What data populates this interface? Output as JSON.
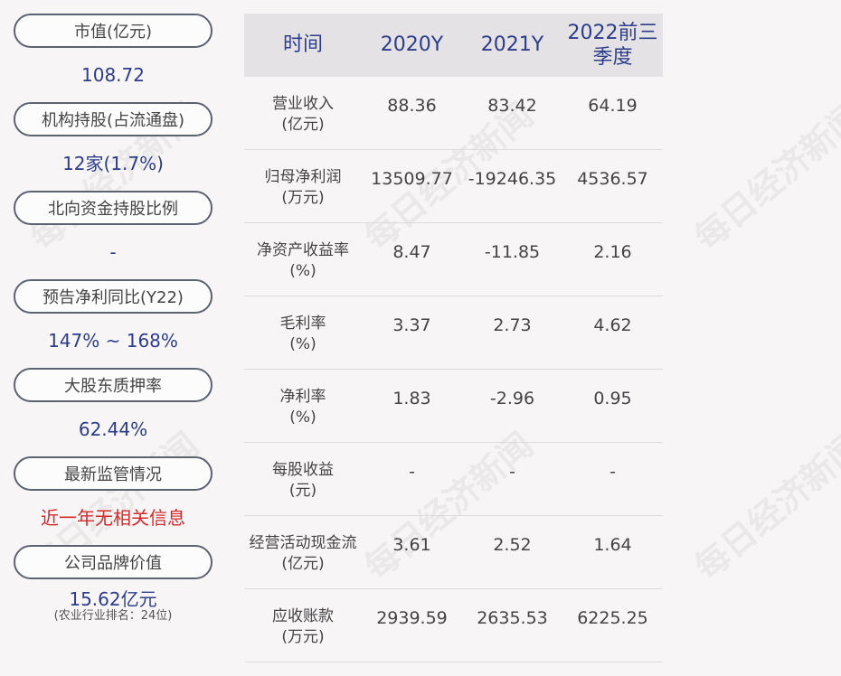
{
  "left_panel": [
    {
      "label": "市值(亿元)",
      "value": "108.72"
    },
    {
      "label": "机构持股(占流通盘)",
      "value": "12家(1.7%)"
    },
    {
      "label": "北向资金持股比例",
      "value": "-"
    },
    {
      "label": "预告净利同比(Y22)",
      "value": "147% ~ 168%"
    },
    {
      "label": "大股东质押率",
      "value": "62.44%"
    },
    {
      "label": "最新监管情况",
      "value": "近一年无相关信息",
      "color": "#d42a2a"
    },
    {
      "label": "公司品牌价值",
      "value": "15.62亿元",
      "sub": "(农业行业排名：24位)"
    }
  ],
  "table": {
    "headers": [
      "时间",
      "2020Y",
      "2021Y",
      "2022前三季度"
    ],
    "rows": [
      {
        "label": "营业收入",
        "unit": "(亿元)",
        "values": [
          "88.36",
          "83.42",
          "64.19"
        ]
      },
      {
        "label": "归母净利润",
        "unit": "(万元)",
        "values": [
          "13509.77",
          "-19246.35",
          "4536.57"
        ]
      },
      {
        "label": "净资产收益率",
        "unit": "(%)",
        "values": [
          "8.47",
          "-11.85",
          "2.16"
        ]
      },
      {
        "label": "毛利率",
        "unit": "(%)",
        "values": [
          "3.37",
          "2.73",
          "4.62"
        ]
      },
      {
        "label": "净利率",
        "unit": "(%)",
        "values": [
          "1.83",
          "-2.96",
          "0.95"
        ]
      },
      {
        "label": "每股收益",
        "unit": "(元)",
        "values": [
          "-",
          "-",
          "-"
        ]
      },
      {
        "label": "经营活动现金流",
        "unit": "(亿元)",
        "values": [
          "3.61",
          "2.52",
          "1.64"
        ]
      },
      {
        "label": "应收账款",
        "unit": "(万元)",
        "values": [
          "2939.59",
          "2635.53",
          "6225.25"
        ]
      }
    ]
  },
  "watermark": "每日经济新闻"
}
